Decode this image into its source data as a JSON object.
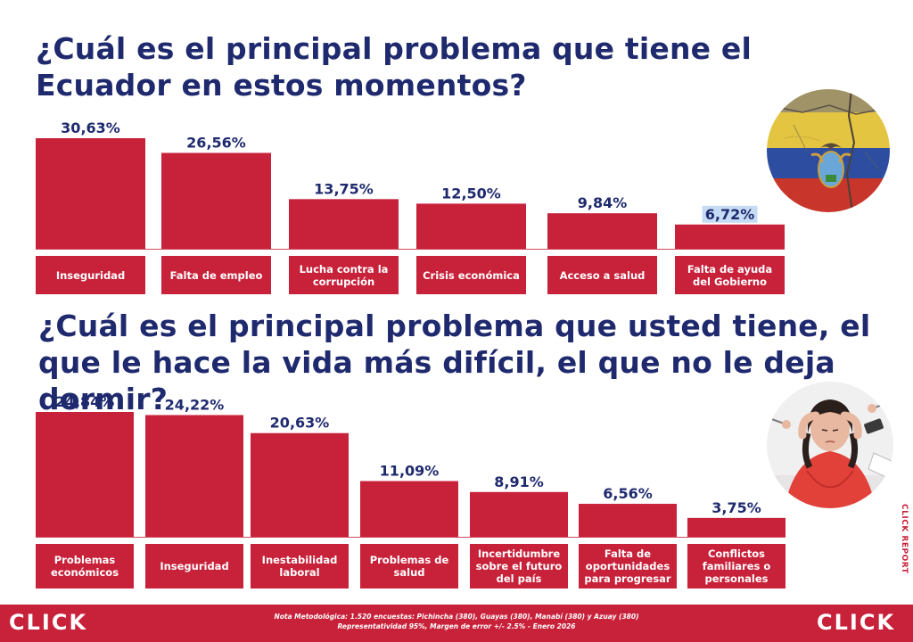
{
  "chart_data": [
    {
      "type": "bar",
      "title": "¿Cuál es el principal problema que tiene el Ecuador en estos momentos?",
      "categories": [
        "Inseguridad",
        "Falta de empleo",
        "Lucha contra la corrupción",
        "Crisis económica",
        "Acceso a salud",
        "Falta de ayuda del Gobierno"
      ],
      "values": [
        30.63,
        26.56,
        13.75,
        12.5,
        9.84,
        6.72
      ],
      "value_labels": [
        "30,63%",
        "26,56%",
        "13,75%",
        "12,50%",
        "9,84%",
        "6,72%"
      ],
      "ylim": [
        0,
        30.63
      ],
      "grid": false,
      "bar_color": "#c8213a",
      "label_color": "#1f2a6e"
    },
    {
      "type": "bar",
      "title": "¿Cuál es el principal problema que usted tiene, el que le hace la vida más difícil, el que no le deja dormir?",
      "categories": [
        "Problemas económicos",
        "Inseguridad",
        "Inestabilidad laboral",
        "Problemas de salud",
        "Incertidumbre sobre el futuro del país",
        "Falta de oportunidades para progresar",
        "Conflictos familiares o personales"
      ],
      "values": [
        24.84,
        24.22,
        20.63,
        11.09,
        8.91,
        6.56,
        3.75
      ],
      "value_labels": [
        "24,84%",
        "24,22%",
        "20,63%",
        "11,09%",
        "8,91%",
        "6,56%",
        "3,75%"
      ],
      "ylim": [
        0,
        24.84
      ],
      "grid": false,
      "bar_color": "#c8213a",
      "label_color": "#1f2a6e"
    }
  ],
  "footer": {
    "logo": "CLICK",
    "note_line1": "Nota Metodológica: 1.520 encuestas: Pichincha (380), Guayas (380), Manabí (380) y Azuay (380)",
    "note_line2": "Representatividad 95%, Margen de error +/- 2.5% - Enero 2026"
  },
  "side_brand": "CLICK REPORT",
  "images": {
    "photo1": "ecuador-flag-wall-icon",
    "photo2": "stressed-woman-icon"
  },
  "colors": {
    "brand_red": "#c8213a",
    "title_navy": "#1f2a6e",
    "highlight": "#c6dcf5"
  }
}
